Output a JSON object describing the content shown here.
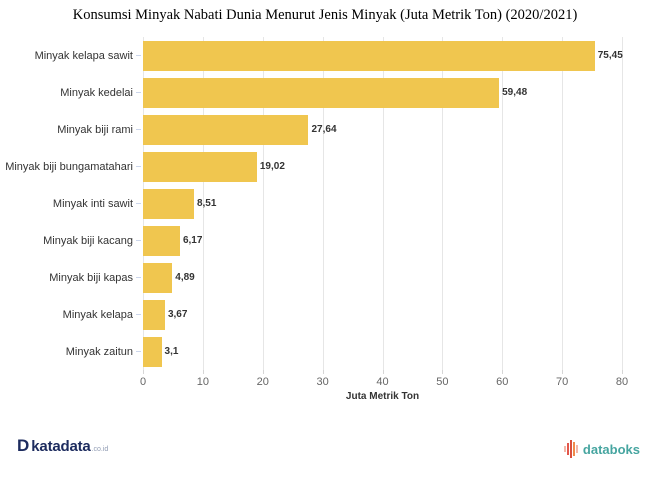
{
  "title": "Konsumsi Minyak Nabati Dunia Menurut Jenis Minyak (Juta Metrik Ton) (2020/2021)",
  "chart_data": {
    "type": "bar",
    "orientation": "horizontal",
    "title": "Konsumsi Minyak Nabati Dunia Menurut Jenis Minyak (Juta Metrik Ton) (2020/2021)",
    "categories": [
      "Minyak kelapa sawit",
      "Minyak kedelai",
      "Minyak biji rami",
      "Minyak biji bungamatahari",
      "Minyak inti sawit",
      "Minyak biji kacang",
      "Minyak biji kapas",
      "Minyak kelapa",
      "Minyak zaitun"
    ],
    "values": [
      75.45,
      59.48,
      27.64,
      19.02,
      8.51,
      6.17,
      4.89,
      3.67,
      3.1
    ],
    "value_labels": [
      "75,45",
      "59,48",
      "27,64",
      "19,02",
      "8,51",
      "6,17",
      "4,89",
      "3,67",
      "3,1"
    ],
    "xlabel": "Juta Metrik Ton",
    "ylabel": "",
    "xlim": [
      0,
      80
    ],
    "xticks": [
      0,
      10,
      20,
      30,
      40,
      50,
      60,
      70,
      80
    ],
    "grid": true,
    "legend": "none",
    "bar_color": "#F0C64F",
    "gridline_color": "#E6E6E6",
    "tick_label_color": "#666666",
    "data_label_color": "#333333"
  },
  "footer": {
    "katadata": {
      "icon": "D",
      "text": "katadata",
      "suffix": ".co.id",
      "color": "#1C2B5E"
    },
    "databoks": {
      "text": "databoks",
      "color": "#46A5A0"
    }
  }
}
